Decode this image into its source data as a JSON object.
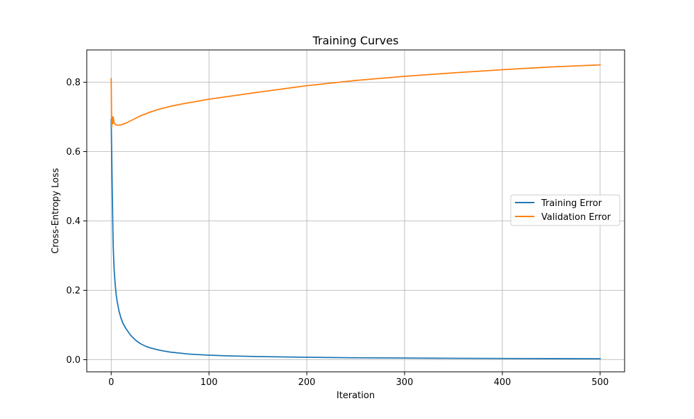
{
  "chart_data": {
    "type": "line",
    "title": "Training Curves",
    "xlabel": "Iteration",
    "ylabel": "Cross-Entropy Loss",
    "xlim": [
      -25,
      525
    ],
    "ylim": [
      -0.035,
      0.893
    ],
    "xticks": [
      0,
      100,
      200,
      300,
      400,
      500
    ],
    "yticks": [
      0.0,
      0.2,
      0.4,
      0.6,
      0.8
    ],
    "ytick_labels": [
      "0.0",
      "0.2",
      "0.4",
      "0.6",
      "0.8"
    ],
    "grid": true,
    "legend_position": "center-right",
    "series": [
      {
        "name": "Training Error",
        "color": "#1f77b4",
        "x": [
          0,
          0.5,
          1,
          2,
          3,
          4,
          5,
          6,
          8,
          10,
          12,
          15,
          18,
          20,
          25,
          30,
          35,
          40,
          50,
          60,
          70,
          80,
          100,
          120,
          150,
          200,
          250,
          300,
          350,
          400,
          450,
          500
        ],
        "y": [
          0.693,
          0.6,
          0.5,
          0.33,
          0.26,
          0.22,
          0.19,
          0.17,
          0.14,
          0.12,
          0.105,
          0.09,
          0.078,
          0.07,
          0.056,
          0.046,
          0.039,
          0.034,
          0.027,
          0.022,
          0.019,
          0.016,
          0.013,
          0.011,
          0.009,
          0.007,
          0.0055,
          0.0047,
          0.004,
          0.0035,
          0.0031,
          0.0028
        ]
      },
      {
        "name": "Validation Error",
        "color": "#ff7f0e",
        "x": [
          0,
          0.5,
          1,
          1.5,
          2,
          3,
          4,
          5,
          7,
          10,
          15,
          20,
          30,
          40,
          50,
          60,
          70,
          80,
          100,
          120,
          150,
          200,
          250,
          300,
          350,
          400,
          450,
          500
        ],
        "y": [
          0.81,
          0.67,
          0.7,
          0.68,
          0.7,
          0.683,
          0.679,
          0.677,
          0.676,
          0.677,
          0.682,
          0.689,
          0.703,
          0.714,
          0.723,
          0.73,
          0.736,
          0.741,
          0.751,
          0.759,
          0.771,
          0.79,
          0.805,
          0.817,
          0.827,
          0.836,
          0.844,
          0.85
        ]
      }
    ]
  }
}
